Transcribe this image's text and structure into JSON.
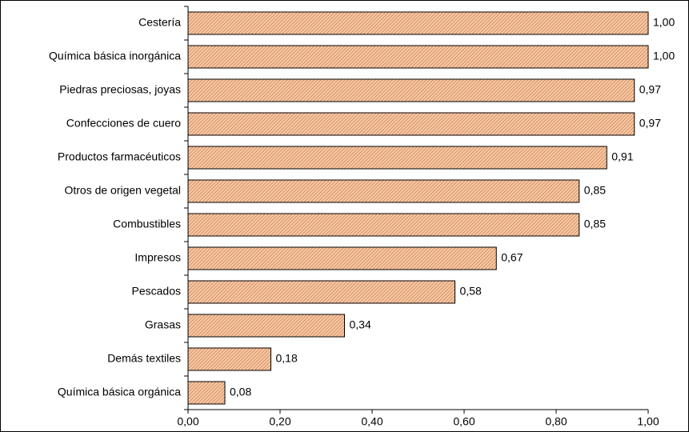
{
  "chart_data": {
    "type": "bar",
    "orientation": "horizontal",
    "categories": [
      "Cestería",
      "Química básica inorgánica",
      "Piedras preciosas, joyas",
      "Confecciones de cuero",
      "Productos farmacéuticos",
      "Otros de origen vegetal",
      "Combustibles",
      "Impresos",
      "Pescados",
      "Grasas",
      "Demás textiles",
      "Química básica orgánica"
    ],
    "values": [
      1.0,
      1.0,
      0.97,
      0.97,
      0.91,
      0.85,
      0.85,
      0.67,
      0.58,
      0.34,
      0.18,
      0.08
    ],
    "value_labels": [
      "1,00",
      "1,00",
      "0,97",
      "0,97",
      "0,91",
      "0,85",
      "0,85",
      "0,67",
      "0,58",
      "0,34",
      "0,18",
      "0,08"
    ],
    "color": "#f9cba6",
    "xlim": [
      0,
      1
    ],
    "xticks": [
      {
        "value": 0,
        "label": "0,00"
      },
      {
        "value": 0.2,
        "label": "0,20"
      },
      {
        "value": 0.4,
        "label": "0,40"
      },
      {
        "value": 0.6,
        "label": "0,60"
      },
      {
        "value": 0.8,
        "label": "0,80"
      },
      {
        "value": 1,
        "label": "1,00"
      }
    ],
    "grid": false
  }
}
